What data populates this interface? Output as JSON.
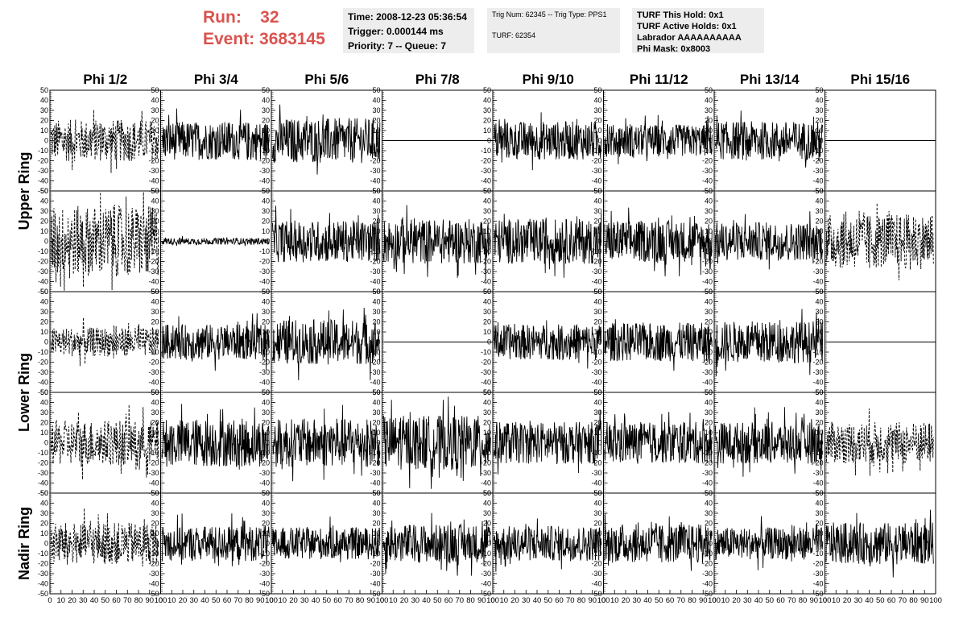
{
  "header": {
    "run_label": "Run:",
    "run_value": "32",
    "event_label": "Event:",
    "event_value": "3683145"
  },
  "info1": {
    "time": "Time: 2008-12-23 05:36:54",
    "trigger": "Trigger: 0.000144 ms",
    "priority": "Priority: 7 -- Queue: 7"
  },
  "info2": {
    "trig": "Trig Num: 62345 -- Trig Type: PPS1",
    "turf": "TURF: 62354"
  },
  "info3": {
    "this_hold": "TURF This Hold: 0x1",
    "active_holds": "TURF Active Holds: 0x1",
    "labrador": "Labrador AAAAAAAAAA",
    "phi_mask": "Phi Mask: 0x8003"
  },
  "colors": {
    "trace": "#000000",
    "run_text": "#d9534f",
    "info_bg": "#ededed"
  },
  "chart_data": {
    "type": "line",
    "columns": [
      "Phi 1/2",
      "Phi 3/4",
      "Phi 5/6",
      "Phi 7/8",
      "Phi 9/10",
      "Phi 11/12",
      "Phi 13/14",
      "Phi 15/16"
    ],
    "ring_labels": [
      "Upper Ring",
      "Lower Ring",
      "Nadir Ring"
    ],
    "xlim": [
      0,
      100
    ],
    "ylim": [
      -50,
      50
    ],
    "y_tick_labels": [
      "50",
      "40",
      "30",
      "20",
      "10",
      "0",
      "-10",
      "-20",
      "-30",
      "-40",
      "-50"
    ],
    "x_tick_labels": [
      "0",
      "10",
      "20",
      "30",
      "40",
      "50",
      "60",
      "70",
      "80",
      "90",
      "100"
    ],
    "panels": [
      [
        {
          "style": "dashed",
          "amplitude": 13
        },
        {
          "style": "solid",
          "amplitude": 12
        },
        {
          "style": "solid",
          "amplitude": 14
        },
        {
          "style": "flat",
          "amplitude": 0
        },
        {
          "style": "solid",
          "amplitude": 12
        },
        {
          "style": "solid",
          "amplitude": 10
        },
        {
          "style": "solid",
          "amplitude": 12
        },
        {
          "style": "flat",
          "amplitude": 0
        }
      ],
      [
        {
          "style": "dashed",
          "amplitude": 22
        },
        {
          "style": "solid",
          "amplitude": 2
        },
        {
          "style": "solid",
          "amplitude": 13
        },
        {
          "style": "solid",
          "amplitude": 14
        },
        {
          "style": "solid",
          "amplitude": 14
        },
        {
          "style": "solid",
          "amplitude": 13
        },
        {
          "style": "solid",
          "amplitude": 12
        },
        {
          "style": "dashed",
          "amplitude": 17
        }
      ],
      [
        {
          "style": "dashed",
          "amplitude": 9
        },
        {
          "style": "solid",
          "amplitude": 11
        },
        {
          "style": "solid",
          "amplitude": 14
        },
        {
          "style": "flat",
          "amplitude": 0
        },
        {
          "style": "solid",
          "amplitude": 11
        },
        {
          "style": "solid",
          "amplitude": 12
        },
        {
          "style": "solid",
          "amplitude": 13
        },
        {
          "style": "flat",
          "amplitude": 0
        }
      ],
      [
        {
          "style": "dashed",
          "amplitude": 14
        },
        {
          "style": "solid",
          "amplitude": 15
        },
        {
          "style": "solid",
          "amplitude": 15
        },
        {
          "style": "solid",
          "amplitude": 17
        },
        {
          "style": "solid",
          "amplitude": 13
        },
        {
          "style": "solid",
          "amplitude": 13
        },
        {
          "style": "solid",
          "amplitude": 13
        },
        {
          "style": "dashed",
          "amplitude": 13
        }
      ],
      [
        {
          "style": "dashed",
          "amplitude": 13
        },
        {
          "style": "solid",
          "amplitude": 11
        },
        {
          "style": "solid",
          "amplitude": 10
        },
        {
          "style": "solid",
          "amplitude": 12
        },
        {
          "style": "solid",
          "amplitude": 11
        },
        {
          "style": "solid",
          "amplitude": 12
        },
        {
          "style": "solid",
          "amplitude": 10
        },
        {
          "style": "solid",
          "amplitude": 13
        }
      ]
    ]
  }
}
